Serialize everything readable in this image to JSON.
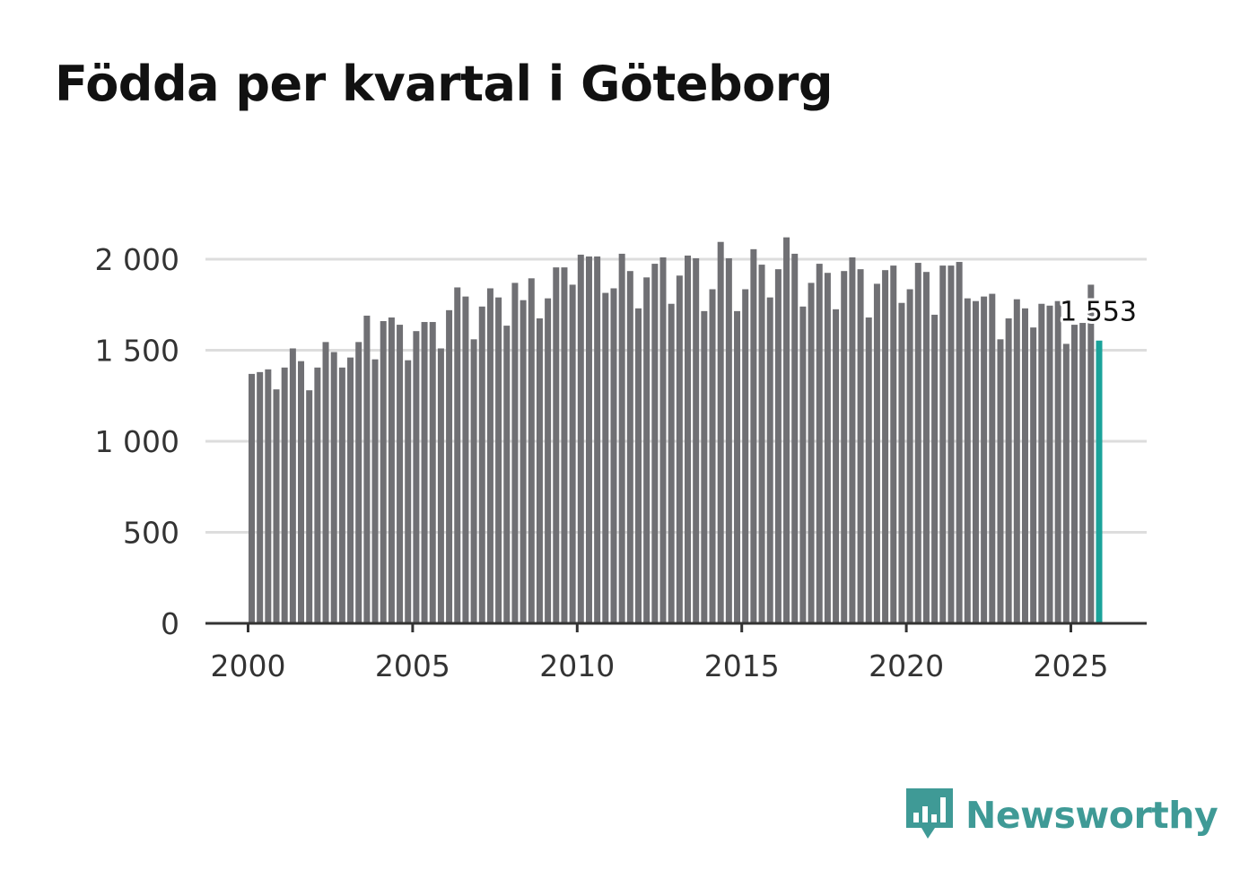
{
  "title": "Födda per kvartal i Göteborg",
  "brand": {
    "name": "Newsworthy",
    "color": "#3f9a96",
    "icon": "newsworthy-logo-icon"
  },
  "colors": {
    "bar": "#707074",
    "highlight": "#1aa39a",
    "grid": "#dddddd",
    "axis": "#333333"
  },
  "chart_data": {
    "type": "bar",
    "title": "Födda per kvartal i Göteborg",
    "xlabel": "",
    "ylabel": "",
    "ylim": [
      0,
      2000
    ],
    "yticks": [
      0,
      500,
      1000,
      1500,
      2000
    ],
    "ytick_labels": [
      "0",
      "500",
      "1 000",
      "1 500",
      "2 000"
    ],
    "xticks": [
      2000,
      2005,
      2010,
      2015,
      2020,
      2025
    ],
    "xtick_labels": [
      "2000",
      "2005",
      "2010",
      "2015",
      "2020",
      "2025"
    ],
    "start_year": 2000,
    "grid": true,
    "highlight_index": 103,
    "highlight_label": "1 553",
    "values": [
      1370,
      1380,
      1395,
      1285,
      1405,
      1510,
      1440,
      1280,
      1405,
      1545,
      1490,
      1405,
      1460,
      1545,
      1690,
      1450,
      1660,
      1680,
      1640,
      1445,
      1605,
      1655,
      1655,
      1510,
      1720,
      1845,
      1795,
      1560,
      1740,
      1840,
      1790,
      1635,
      1870,
      1775,
      1895,
      1675,
      1785,
      1955,
      1955,
      1860,
      2025,
      2015,
      2015,
      1815,
      1840,
      2030,
      1935,
      1730,
      1900,
      1975,
      2010,
      1755,
      1910,
      2020,
      2005,
      1715,
      1835,
      2095,
      2005,
      1715,
      1835,
      2055,
      1970,
      1790,
      1945,
      2120,
      2030,
      1740,
      1870,
      1975,
      1925,
      1725,
      1935,
      2010,
      1945,
      1680,
      1865,
      1940,
      1965,
      1760,
      1835,
      1980,
      1930,
      1695,
      1965,
      1965,
      1985,
      1785,
      1770,
      1795,
      1810,
      1560,
      1675,
      1780,
      1730,
      1625,
      1755,
      1745,
      1770,
      1535,
      1640,
      1650,
      1860,
      1553
    ]
  }
}
